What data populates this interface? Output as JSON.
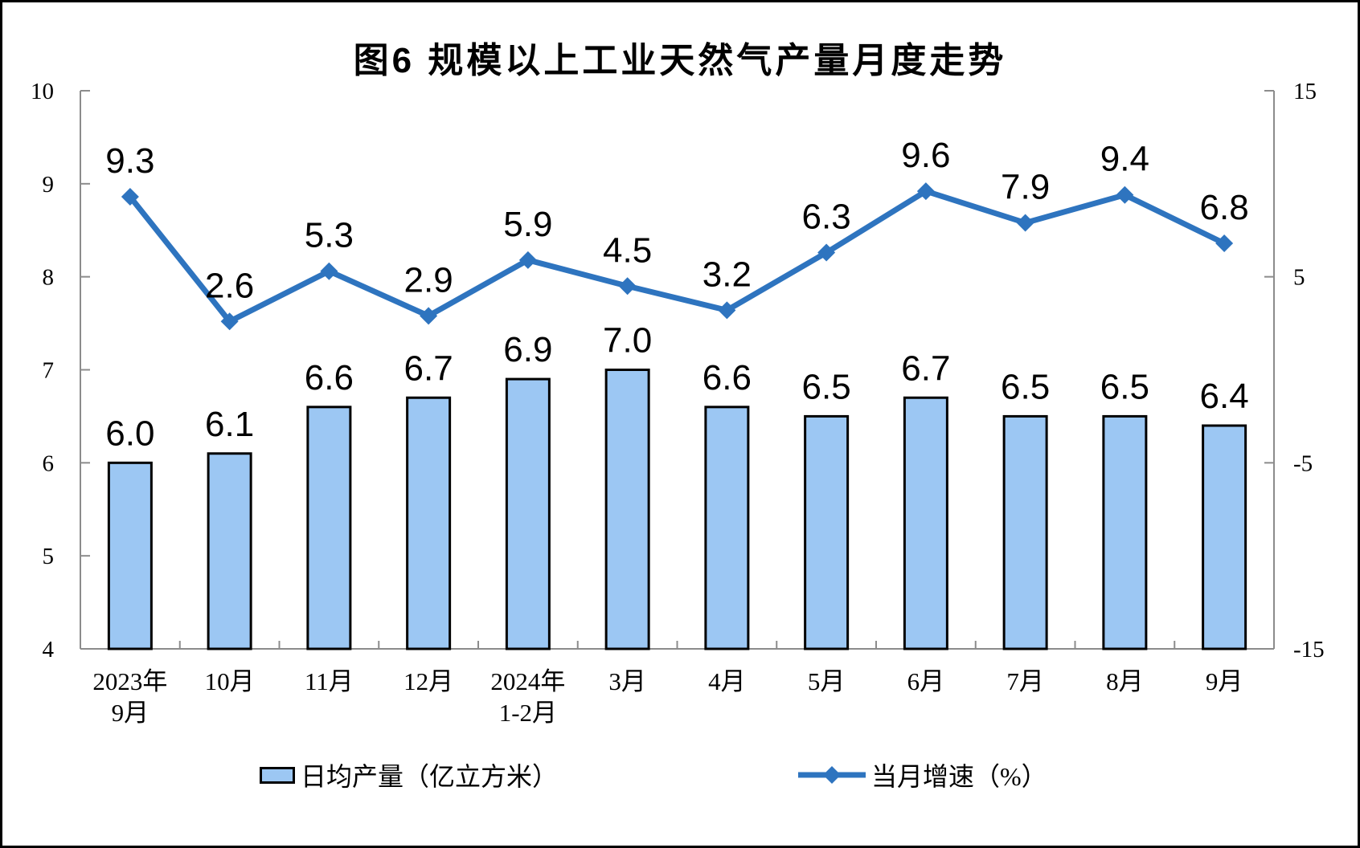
{
  "title": "图6 规模以上工业天然气产量月度走势",
  "chart_data": {
    "type": "bar+line",
    "categories": [
      [
        "2023年",
        "9月"
      ],
      [
        "10月"
      ],
      [
        "11月"
      ],
      [
        "12月"
      ],
      [
        "2024年",
        "1-2月"
      ],
      [
        "3月"
      ],
      [
        "4月"
      ],
      [
        "5月"
      ],
      [
        "6月"
      ],
      [
        "7月"
      ],
      [
        "8月"
      ],
      [
        "9月"
      ]
    ],
    "series": [
      {
        "name": "日均产量（亿立方米）",
        "type": "bar",
        "axis": "left",
        "values": [
          6.0,
          6.1,
          6.6,
          6.7,
          6.9,
          7.0,
          6.6,
          6.5,
          6.7,
          6.5,
          6.5,
          6.4
        ],
        "color": "#9CC7F3",
        "border_color": "#000000"
      },
      {
        "name": "当月增速（%）",
        "type": "line",
        "axis": "right",
        "values": [
          9.3,
          2.6,
          5.3,
          2.9,
          5.9,
          4.5,
          3.2,
          6.3,
          9.6,
          7.9,
          9.4,
          6.8
        ],
        "color": "#2E74BF",
        "marker": "diamond"
      }
    ],
    "left_axis": {
      "min": 4,
      "max": 10,
      "ticks": [
        10,
        9,
        8,
        7,
        6,
        5,
        4
      ]
    },
    "right_axis": {
      "min": -15,
      "max": 15,
      "ticks": [
        15,
        5,
        -5,
        -15
      ]
    },
    "grid": false,
    "legend_position": "bottom"
  },
  "colors": {
    "axis": "#8C8C8C",
    "text": "#000000",
    "background": "#FFFFFF",
    "frame_border": "#000000"
  }
}
